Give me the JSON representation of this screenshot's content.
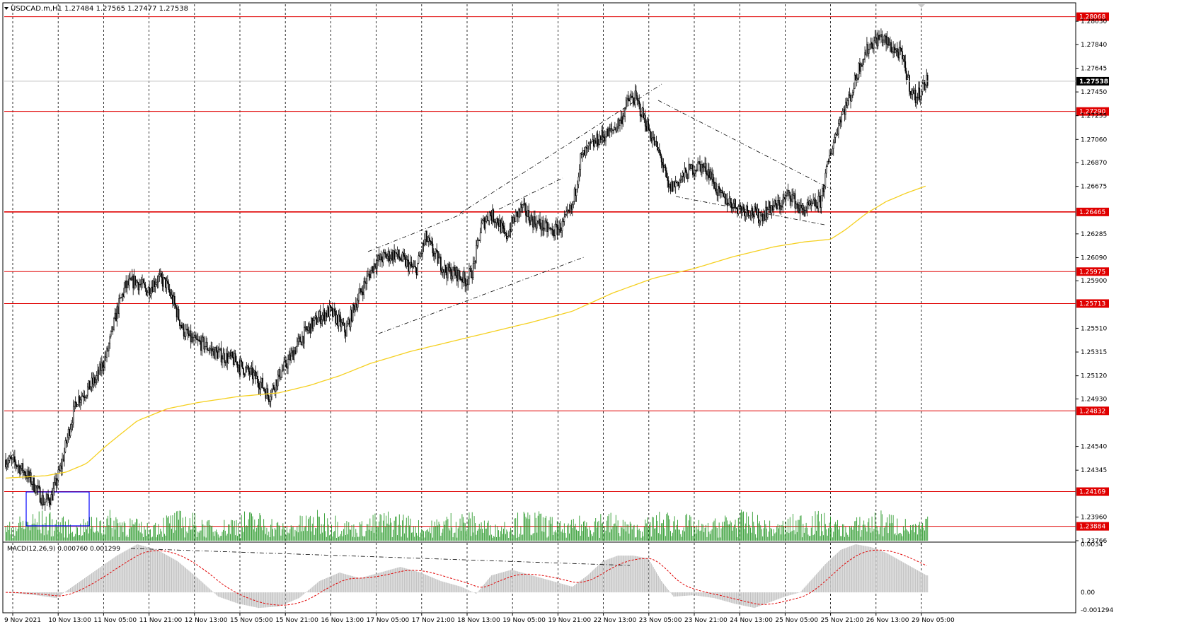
{
  "header": {
    "symbol_line": "USDCAD.m,H1  1.27484 1.27565 1.27477 1.27538"
  },
  "price_axis": {
    "labels": [
      "1.28030",
      "1.27840",
      "1.27645",
      "1.27450",
      "1.27255",
      "1.27060",
      "1.26870",
      "1.26675",
      "1.26285",
      "1.26090",
      "1.25900",
      "1.25510",
      "1.25315",
      "1.25120",
      "1.24930",
      "1.24540",
      "1.24345",
      "1.23960",
      "1.23766"
    ]
  },
  "current_price": "1.27538",
  "levels": [
    "1.28068",
    "1.27290",
    "1.26465",
    "1.25975",
    "1.25713",
    "1.24832",
    "1.24169",
    "1.23884"
  ],
  "macd": {
    "label": "MACD(12,26,9) 0.000760 0.001299",
    "axis_labels": [
      "0.0034",
      "0.00",
      "-0.001294"
    ]
  },
  "time_axis": {
    "labels": [
      "9 Nov 2021",
      "10 Nov 13:00",
      "11 Nov 05:00",
      "11 Nov 21:00",
      "12 Nov 13:00",
      "15 Nov 05:00",
      "15 Nov 21:00",
      "16 Nov 13:00",
      "17 Nov 05:00",
      "17 Nov 21:00",
      "18 Nov 13:00",
      "19 Nov 05:00",
      "19 Nov 21:00",
      "22 Nov 13:00",
      "23 Nov 05:00",
      "23 Nov 21:00",
      "24 Nov 13:00",
      "25 Nov 05:00",
      "25 Nov 21:00",
      "26 Nov 13:00",
      "29 Nov 05:00"
    ]
  },
  "colors": {
    "level_line": "#e00000",
    "ma_line": "#f5d020",
    "volume": "#2e9b2e",
    "macd_hist": "#c0c0c0",
    "macd_signal": "#e00000",
    "selection_box": "#0000ff"
  },
  "chart_data": {
    "type": "candlestick",
    "symbol": "USDCAD.m",
    "timeframe": "H1",
    "ohlc_last": {
      "open": 1.27484,
      "high": 1.27565,
      "low": 1.27477,
      "close": 1.27538
    },
    "anchors": [
      [
        0,
        1.2443
      ],
      [
        10,
        1.244
      ],
      [
        20,
        1.2432
      ],
      [
        30,
        1.242
      ],
      [
        38,
        1.2408
      ],
      [
        45,
        1.2412
      ],
      [
        55,
        1.2438
      ],
      [
        62,
        1.2465
      ],
      [
        70,
        1.2492
      ],
      [
        80,
        1.25
      ],
      [
        90,
        1.251
      ],
      [
        100,
        1.253
      ],
      [
        110,
        1.2565
      ],
      [
        118,
        1.2585
      ],
      [
        128,
        1.259
      ],
      [
        140,
        1.2582
      ],
      [
        150,
        1.2592
      ],
      [
        158,
        1.2588
      ],
      [
        166,
        1.2572
      ],
      [
        175,
        1.255
      ],
      [
        185,
        1.254
      ],
      [
        195,
        1.2538
      ],
      [
        205,
        1.2532
      ],
      [
        215,
        1.2528
      ],
      [
        225,
        1.2525
      ],
      [
        235,
        1.2518
      ],
      [
        245,
        1.2512
      ],
      [
        253,
        1.2505
      ],
      [
        260,
        1.2495
      ],
      [
        270,
        1.2512
      ],
      [
        280,
        1.2525
      ],
      [
        290,
        1.254
      ],
      [
        300,
        1.2552
      ],
      [
        310,
        1.256
      ],
      [
        320,
        1.2565
      ],
      [
        328,
        1.2558
      ],
      [
        336,
        1.2548
      ],
      [
        345,
        1.257
      ],
      [
        355,
        1.2588
      ],
      [
        365,
        1.2605
      ],
      [
        375,
        1.261
      ],
      [
        385,
        1.2612
      ],
      [
        395,
        1.2605
      ],
      [
        405,
        1.2598
      ],
      [
        415,
        1.2625
      ],
      [
        425,
        1.261
      ],
      [
        435,
        1.2598
      ],
      [
        445,
        1.2596
      ],
      [
        455,
        1.259
      ],
      [
        462,
        1.26
      ],
      [
        470,
        1.2635
      ],
      [
        478,
        1.2645
      ],
      [
        486,
        1.264
      ],
      [
        494,
        1.2625
      ],
      [
        502,
        1.264
      ],
      [
        510,
        1.265
      ],
      [
        520,
        1.264
      ],
      [
        530,
        1.2635
      ],
      [
        540,
        1.263
      ],
      [
        550,
        1.2635
      ],
      [
        560,
        1.265
      ],
      [
        568,
        1.269
      ],
      [
        578,
        1.27
      ],
      [
        588,
        1.2708
      ],
      [
        598,
        1.2712
      ],
      [
        608,
        1.2722
      ],
      [
        615,
        1.2738
      ],
      [
        622,
        1.274
      ],
      [
        630,
        1.2725
      ],
      [
        640,
        1.2705
      ],
      [
        648,
        1.269
      ],
      [
        655,
        1.2665
      ],
      [
        665,
        1.2672
      ],
      [
        675,
        1.268
      ],
      [
        685,
        1.2685
      ],
      [
        695,
        1.268
      ],
      [
        705,
        1.266
      ],
      [
        715,
        1.2655
      ],
      [
        725,
        1.265
      ],
      [
        735,
        1.2648
      ],
      [
        745,
        1.2642
      ],
      [
        755,
        1.265
      ],
      [
        765,
        1.2652
      ],
      [
        775,
        1.2662
      ],
      [
        785,
        1.2648
      ],
      [
        795,
        1.265
      ],
      [
        805,
        1.2655
      ],
      [
        815,
        1.2695
      ],
      [
        825,
        1.2725
      ],
      [
        835,
        1.2742
      ],
      [
        845,
        1.277
      ],
      [
        855,
        1.2785
      ],
      [
        865,
        1.279
      ],
      [
        875,
        1.2782
      ],
      [
        885,
        1.2775
      ],
      [
        890,
        1.276
      ],
      [
        895,
        1.2745
      ],
      [
        900,
        1.274
      ],
      [
        905,
        1.2748
      ],
      [
        910,
        1.2754
      ]
    ],
    "ma_anchors": [
      [
        0,
        1.2428
      ],
      [
        40,
        1.243
      ],
      [
        60,
        1.2433
      ],
      [
        80,
        1.244
      ],
      [
        100,
        1.2455
      ],
      [
        130,
        1.2475
      ],
      [
        160,
        1.2485
      ],
      [
        190,
        1.249
      ],
      [
        230,
        1.2495
      ],
      [
        270,
        1.2498
      ],
      [
        300,
        1.2504
      ],
      [
        330,
        1.2512
      ],
      [
        360,
        1.2522
      ],
      [
        400,
        1.2532
      ],
      [
        440,
        1.254
      ],
      [
        480,
        1.2548
      ],
      [
        520,
        1.2556
      ],
      [
        560,
        1.2565
      ],
      [
        600,
        1.258
      ],
      [
        640,
        1.2592
      ],
      [
        680,
        1.26
      ],
      [
        720,
        1.261
      ],
      [
        760,
        1.2618
      ],
      [
        790,
        1.2622
      ],
      [
        815,
        1.2624
      ],
      [
        830,
        1.2632
      ],
      [
        850,
        1.2645
      ],
      [
        870,
        1.2655
      ],
      [
        890,
        1.2662
      ],
      [
        910,
        1.2668
      ]
    ],
    "macd_anchors": [
      [
        0,
        0.0
      ],
      [
        30,
        -0.0002
      ],
      [
        50,
        -0.0004
      ],
      [
        70,
        0.0006
      ],
      [
        90,
        0.0016
      ],
      [
        110,
        0.0026
      ],
      [
        130,
        0.0034
      ],
      [
        150,
        0.003
      ],
      [
        170,
        0.0022
      ],
      [
        190,
        0.001
      ],
      [
        210,
        -0.0003
      ],
      [
        230,
        -0.0008
      ],
      [
        250,
        -0.0011
      ],
      [
        270,
        -0.001
      ],
      [
        290,
        -0.0004
      ],
      [
        310,
        0.0008
      ],
      [
        330,
        0.0014
      ],
      [
        350,
        0.001
      ],
      [
        370,
        0.0014
      ],
      [
        390,
        0.0018
      ],
      [
        410,
        0.0014
      ],
      [
        430,
        0.0008
      ],
      [
        450,
        0.0004
      ],
      [
        465,
        -0.0001
      ],
      [
        480,
        0.0012
      ],
      [
        500,
        0.0016
      ],
      [
        520,
        0.0012
      ],
      [
        540,
        0.0008
      ],
      [
        560,
        0.0004
      ],
      [
        575,
        0.0012
      ],
      [
        590,
        0.0022
      ],
      [
        605,
        0.0026
      ],
      [
        620,
        0.0026
      ],
      [
        635,
        0.0024
      ],
      [
        648,
        0.0008
      ],
      [
        660,
        -0.0003
      ],
      [
        680,
        -0.0002
      ],
      [
        700,
        -0.0004
      ],
      [
        720,
        -0.0008
      ],
      [
        740,
        -0.0011
      ],
      [
        755,
        -0.0007
      ],
      [
        770,
        -0.0003
      ],
      [
        785,
        0.0
      ],
      [
        795,
        0.0008
      ],
      [
        810,
        0.002
      ],
      [
        825,
        0.003
      ],
      [
        840,
        0.0034
      ],
      [
        855,
        0.0032
      ],
      [
        870,
        0.0028
      ],
      [
        885,
        0.0022
      ],
      [
        900,
        0.0016
      ],
      [
        910,
        0.0012
      ]
    ],
    "price_range": [
      1.23766,
      1.2817
    ],
    "macd_range": [
      -0.001294,
      0.0034
    ]
  }
}
